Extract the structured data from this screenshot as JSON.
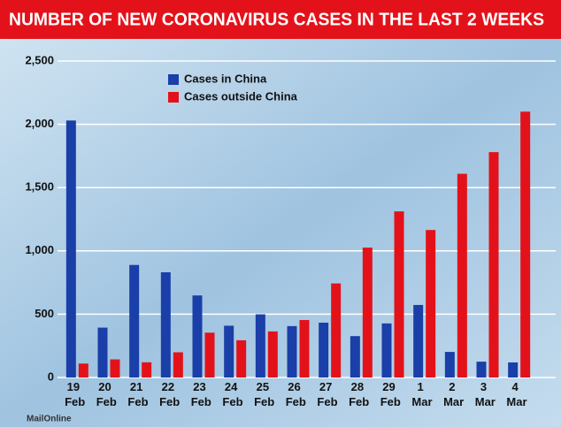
{
  "chart_data": {
    "type": "bar",
    "title": "NUMBER OF NEW CORONAVIRUS CASES IN THE LAST 2 WEEKS",
    "categories": [
      "19 Feb",
      "20 Feb",
      "21 Feb",
      "22 Feb",
      "23 Feb",
      "24 Feb",
      "25 Feb",
      "26 Feb",
      "27 Feb",
      "28 Feb",
      "29 Feb",
      "1 Mar",
      "2 Mar",
      "3 Mar",
      "4 Mar"
    ],
    "series": [
      {
        "name": "Cases in China",
        "color": "#1a3fa8",
        "values": [
          2030,
          394,
          889,
          831,
          648,
          409,
          499,
          406,
          433,
          327,
          427,
          573,
          202,
          125,
          119
        ]
      },
      {
        "name": "Cases outside China",
        "color": "#e3121a",
        "values": [
          110,
          143,
          120,
          199,
          354,
          294,
          364,
          454,
          743,
          1026,
          1312,
          1165,
          1609,
          1780,
          2100
        ]
      }
    ],
    "ylim": [
      0,
      2500
    ],
    "yticks": [
      0,
      {
        "value": 500,
        "label": "500"
      },
      {
        "value": 1000,
        "label": "1,000"
      },
      {
        "value": 1500,
        "label": "1,500"
      },
      {
        "value": 2000,
        "label": "2,000"
      },
      {
        "value": 2500,
        "label": "2,500"
      }
    ],
    "grid": true,
    "source": "MailOnline"
  }
}
